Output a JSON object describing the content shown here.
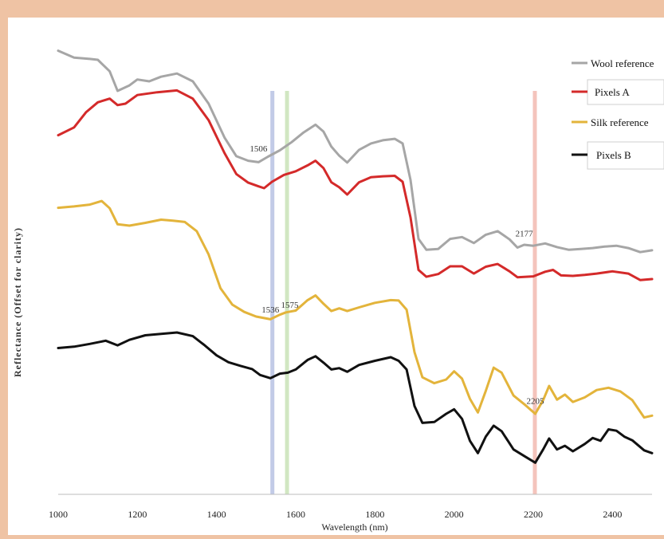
{
  "chart_data": {
    "type": "line",
    "title": "",
    "xlabel": "Wavelength (nm)",
    "ylabel": "Reflectance (Offset for clarity)",
    "xlim": [
      1000,
      2500
    ],
    "x_ticks": [
      1000,
      1200,
      1400,
      1600,
      1800,
      2000,
      2200,
      2400
    ],
    "y_axis_scale": "offset, no numeric ticks",
    "grid": false,
    "legend_position": "top-right",
    "series": [
      {
        "name": "Wool reference",
        "color": "#a6a6a6",
        "points": [
          [
            1000,
            0.885
          ],
          [
            1040,
            0.87
          ],
          [
            1080,
            0.867
          ],
          [
            1100,
            0.865
          ],
          [
            1130,
            0.84
          ],
          [
            1150,
            0.797
          ],
          [
            1180,
            0.809
          ],
          [
            1200,
            0.822
          ],
          [
            1230,
            0.818
          ],
          [
            1260,
            0.828
          ],
          [
            1300,
            0.835
          ],
          [
            1340,
            0.818
          ],
          [
            1380,
            0.769
          ],
          [
            1420,
            0.695
          ],
          [
            1450,
            0.654
          ],
          [
            1480,
            0.644
          ],
          [
            1506,
            0.641
          ],
          [
            1530,
            0.653
          ],
          [
            1560,
            0.667
          ],
          [
            1590,
            0.685
          ],
          [
            1620,
            0.706
          ],
          [
            1650,
            0.723
          ],
          [
            1670,
            0.708
          ],
          [
            1690,
            0.675
          ],
          [
            1710,
            0.655
          ],
          [
            1730,
            0.64
          ],
          [
            1760,
            0.668
          ],
          [
            1790,
            0.682
          ],
          [
            1820,
            0.689
          ],
          [
            1850,
            0.692
          ],
          [
            1870,
            0.682
          ],
          [
            1890,
            0.602
          ],
          [
            1910,
            0.473
          ],
          [
            1930,
            0.449
          ],
          [
            1960,
            0.451
          ],
          [
            1990,
            0.473
          ],
          [
            2020,
            0.477
          ],
          [
            2050,
            0.464
          ],
          [
            2080,
            0.482
          ],
          [
            2110,
            0.49
          ],
          [
            2140,
            0.472
          ],
          [
            2160,
            0.454
          ],
          [
            2177,
            0.46
          ],
          [
            2200,
            0.458
          ],
          [
            2230,
            0.463
          ],
          [
            2260,
            0.455
          ],
          [
            2290,
            0.449
          ],
          [
            2320,
            0.451
          ],
          [
            2350,
            0.453
          ],
          [
            2380,
            0.456
          ],
          [
            2410,
            0.458
          ],
          [
            2440,
            0.453
          ],
          [
            2470,
            0.444
          ],
          [
            2500,
            0.448
          ]
        ]
      },
      {
        "name": "Pixels A",
        "color": "#d42a2a",
        "points": [
          [
            1000,
            0.7
          ],
          [
            1040,
            0.717
          ],
          [
            1070,
            0.75
          ],
          [
            1100,
            0.772
          ],
          [
            1130,
            0.78
          ],
          [
            1150,
            0.766
          ],
          [
            1170,
            0.769
          ],
          [
            1200,
            0.788
          ],
          [
            1250,
            0.794
          ],
          [
            1300,
            0.798
          ],
          [
            1340,
            0.78
          ],
          [
            1380,
            0.733
          ],
          [
            1420,
            0.661
          ],
          [
            1450,
            0.615
          ],
          [
            1480,
            0.596
          ],
          [
            1506,
            0.588
          ],
          [
            1520,
            0.584
          ],
          [
            1540,
            0.598
          ],
          [
            1570,
            0.613
          ],
          [
            1600,
            0.621
          ],
          [
            1630,
            0.634
          ],
          [
            1650,
            0.644
          ],
          [
            1670,
            0.628
          ],
          [
            1690,
            0.597
          ],
          [
            1710,
            0.586
          ],
          [
            1730,
            0.57
          ],
          [
            1760,
            0.597
          ],
          [
            1790,
            0.608
          ],
          [
            1820,
            0.61
          ],
          [
            1850,
            0.611
          ],
          [
            1870,
            0.598
          ],
          [
            1890,
            0.52
          ],
          [
            1910,
            0.405
          ],
          [
            1930,
            0.39
          ],
          [
            1960,
            0.396
          ],
          [
            1990,
            0.413
          ],
          [
            2020,
            0.413
          ],
          [
            2050,
            0.397
          ],
          [
            2080,
            0.412
          ],
          [
            2110,
            0.418
          ],
          [
            2140,
            0.402
          ],
          [
            2160,
            0.389
          ],
          [
            2200,
            0.391
          ],
          [
            2230,
            0.401
          ],
          [
            2250,
            0.405
          ],
          [
            2270,
            0.393
          ],
          [
            2300,
            0.392
          ],
          [
            2330,
            0.394
          ],
          [
            2360,
            0.397
          ],
          [
            2400,
            0.402
          ],
          [
            2440,
            0.397
          ],
          [
            2470,
            0.383
          ],
          [
            2500,
            0.385
          ]
        ]
      },
      {
        "name": "Silk reference",
        "color": "#e3b43b",
        "points": [
          [
            1000,
            0.541
          ],
          [
            1040,
            0.544
          ],
          [
            1080,
            0.548
          ],
          [
            1110,
            0.556
          ],
          [
            1130,
            0.54
          ],
          [
            1150,
            0.505
          ],
          [
            1180,
            0.502
          ],
          [
            1220,
            0.508
          ],
          [
            1260,
            0.515
          ],
          [
            1290,
            0.513
          ],
          [
            1320,
            0.51
          ],
          [
            1350,
            0.49
          ],
          [
            1380,
            0.439
          ],
          [
            1410,
            0.365
          ],
          [
            1440,
            0.329
          ],
          [
            1470,
            0.313
          ],
          [
            1500,
            0.303
          ],
          [
            1536,
            0.297
          ],
          [
            1560,
            0.307
          ],
          [
            1575,
            0.312
          ],
          [
            1600,
            0.316
          ],
          [
            1630,
            0.339
          ],
          [
            1650,
            0.349
          ],
          [
            1670,
            0.331
          ],
          [
            1690,
            0.315
          ],
          [
            1710,
            0.321
          ],
          [
            1730,
            0.315
          ],
          [
            1760,
            0.323
          ],
          [
            1800,
            0.333
          ],
          [
            1840,
            0.339
          ],
          [
            1860,
            0.338
          ],
          [
            1880,
            0.318
          ],
          [
            1900,
            0.225
          ],
          [
            1920,
            0.17
          ],
          [
            1950,
            0.157
          ],
          [
            1980,
            0.165
          ],
          [
            2000,
            0.183
          ],
          [
            2020,
            0.167
          ],
          [
            2040,
            0.123
          ],
          [
            2060,
            0.093
          ],
          [
            2080,
            0.14
          ],
          [
            2100,
            0.191
          ],
          [
            2120,
            0.18
          ],
          [
            2150,
            0.13
          ],
          [
            2180,
            0.109
          ],
          [
            2205,
            0.09
          ],
          [
            2225,
            0.12
          ],
          [
            2240,
            0.151
          ],
          [
            2260,
            0.121
          ],
          [
            2280,
            0.132
          ],
          [
            2300,
            0.116
          ],
          [
            2330,
            0.126
          ],
          [
            2360,
            0.142
          ],
          [
            2390,
            0.147
          ],
          [
            2420,
            0.139
          ],
          [
            2450,
            0.12
          ],
          [
            2480,
            0.082
          ],
          [
            2500,
            0.086
          ]
        ]
      },
      {
        "name": "Pixels B",
        "color": "#111111",
        "points": [
          [
            1000,
            0.234
          ],
          [
            1040,
            0.237
          ],
          [
            1080,
            0.243
          ],
          [
            1120,
            0.25
          ],
          [
            1150,
            0.24
          ],
          [
            1180,
            0.252
          ],
          [
            1220,
            0.262
          ],
          [
            1260,
            0.265
          ],
          [
            1300,
            0.268
          ],
          [
            1340,
            0.26
          ],
          [
            1370,
            0.24
          ],
          [
            1400,
            0.218
          ],
          [
            1430,
            0.203
          ],
          [
            1460,
            0.195
          ],
          [
            1490,
            0.188
          ],
          [
            1510,
            0.175
          ],
          [
            1536,
            0.168
          ],
          [
            1560,
            0.178
          ],
          [
            1580,
            0.18
          ],
          [
            1600,
            0.187
          ],
          [
            1630,
            0.208
          ],
          [
            1650,
            0.216
          ],
          [
            1670,
            0.202
          ],
          [
            1690,
            0.187
          ],
          [
            1710,
            0.19
          ],
          [
            1730,
            0.182
          ],
          [
            1760,
            0.197
          ],
          [
            1800,
            0.206
          ],
          [
            1840,
            0.214
          ],
          [
            1860,
            0.206
          ],
          [
            1880,
            0.187
          ],
          [
            1900,
            0.107
          ],
          [
            1920,
            0.07
          ],
          [
            1950,
            0.072
          ],
          [
            1980,
            0.09
          ],
          [
            2000,
            0.1
          ],
          [
            2020,
            0.079
          ],
          [
            2040,
            0.031
          ],
          [
            2060,
            0.004
          ],
          [
            2080,
            0.04
          ],
          [
            2100,
            0.064
          ],
          [
            2120,
            0.052
          ],
          [
            2150,
            0.012
          ],
          [
            2180,
            -0.004
          ],
          [
            2205,
            -0.017
          ],
          [
            2225,
            0.012
          ],
          [
            2240,
            0.036
          ],
          [
            2260,
            0.012
          ],
          [
            2280,
            0.02
          ],
          [
            2300,
            0.008
          ],
          [
            2330,
            0.024
          ],
          [
            2350,
            0.037
          ],
          [
            2370,
            0.031
          ],
          [
            2390,
            0.056
          ],
          [
            2410,
            0.053
          ],
          [
            2430,
            0.04
          ],
          [
            2450,
            0.032
          ],
          [
            2480,
            0.01
          ],
          [
            2500,
            0.004
          ]
        ]
      }
    ],
    "reference_lines": [
      {
        "x": 1541,
        "color": "#b7c2e3"
      },
      {
        "x": 1578,
        "color": "#c9e3b7"
      },
      {
        "x": 2204,
        "color": "#f2bab0"
      }
    ],
    "annotations": [
      {
        "text": "1506",
        "x": 1506,
        "y": 0.664
      },
      {
        "text": "1536",
        "x": 1536,
        "y": 0.312
      },
      {
        "text": "1575",
        "x": 1585,
        "y": 0.322
      },
      {
        "text": "2177",
        "x": 2177,
        "y": 0.478
      },
      {
        "text": "2205",
        "x": 2205,
        "y": 0.112
      }
    ]
  }
}
